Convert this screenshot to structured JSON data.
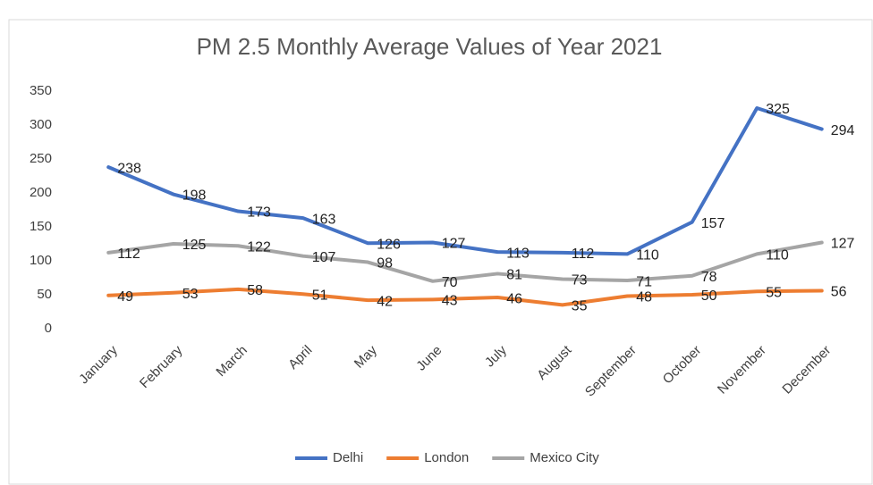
{
  "chart_data": {
    "type": "line",
    "title": "PM 2.5 Monthly Average Values of Year 2021",
    "categories": [
      "January",
      "February",
      "March",
      "April",
      "May",
      "June",
      "July",
      "August",
      "September",
      "October",
      "November",
      "December"
    ],
    "series": [
      {
        "name": "Delhi",
        "color": "#4472c4",
        "values": [
          238,
          198,
          173,
          163,
          126,
          127,
          113,
          112,
          110,
          157,
          325,
          294
        ]
      },
      {
        "name": "London",
        "color": "#ed7d31",
        "values": [
          49,
          53,
          58,
          51,
          42,
          43,
          46,
          35,
          48,
          50,
          55,
          56
        ]
      },
      {
        "name": "Mexico City",
        "color": "#a5a5a5",
        "values": [
          112,
          125,
          122,
          107,
          98,
          70,
          81,
          73,
          71,
          78,
          110,
          127
        ]
      }
    ],
    "ylim": [
      0,
      350
    ],
    "yticks": [
      0,
      50,
      100,
      150,
      200,
      250,
      300,
      350
    ],
    "grid": false,
    "legend": "bottom"
  }
}
